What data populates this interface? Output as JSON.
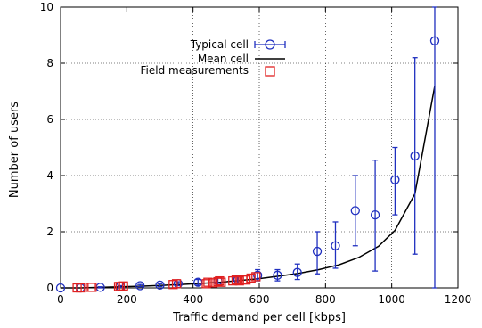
{
  "chart_data": {
    "type": "line",
    "xlabel": "Traffic demand per cell [kbps]",
    "ylabel": "Number of users",
    "xlim": [
      0,
      1200
    ],
    "ylim": [
      0,
      10
    ],
    "xticks": [
      0,
      200,
      400,
      600,
      800,
      1000,
      1200
    ],
    "yticks": [
      0,
      2,
      4,
      6,
      8,
      10
    ],
    "grid": true,
    "legend_position": "top-left",
    "colors": {
      "typical": "#1f2fbf",
      "mean": "#000000",
      "field": "#e02020"
    },
    "series": [
      {
        "name": "Typical cell",
        "style": "circles-with-errorbars",
        "points": [
          {
            "x": 0,
            "y": 0.0,
            "lo": 0.0,
            "hi": 0.0
          },
          {
            "x": 60,
            "y": 0.0,
            "lo": 0.0,
            "hi": 0.0
          },
          {
            "x": 120,
            "y": 0.02,
            "lo": 0.0,
            "hi": 0.04
          },
          {
            "x": 180,
            "y": 0.05,
            "lo": 0.02,
            "hi": 0.08
          },
          {
            "x": 240,
            "y": 0.08,
            "lo": 0.04,
            "hi": 0.12
          },
          {
            "x": 300,
            "y": 0.1,
            "lo": 0.05,
            "hi": 0.15
          },
          {
            "x": 355,
            "y": 0.15,
            "lo": 0.08,
            "hi": 0.22
          },
          {
            "x": 415,
            "y": 0.2,
            "lo": 0.1,
            "hi": 0.3
          },
          {
            "x": 475,
            "y": 0.25,
            "lo": 0.12,
            "hi": 0.38
          },
          {
            "x": 535,
            "y": 0.3,
            "lo": 0.15,
            "hi": 0.45
          },
          {
            "x": 595,
            "y": 0.45,
            "lo": 0.25,
            "hi": 0.65
          },
          {
            "x": 655,
            "y": 0.45,
            "lo": 0.25,
            "hi": 0.65
          },
          {
            "x": 715,
            "y": 0.55,
            "lo": 0.3,
            "hi": 0.85
          },
          {
            "x": 775,
            "y": 1.3,
            "lo": 0.5,
            "hi": 2.0
          },
          {
            "x": 830,
            "y": 1.5,
            "lo": 0.7,
            "hi": 2.35
          },
          {
            "x": 890,
            "y": 2.75,
            "lo": 1.5,
            "hi": 4.0
          },
          {
            "x": 950,
            "y": 2.6,
            "lo": 0.6,
            "hi": 4.55
          },
          {
            "x": 1010,
            "y": 3.85,
            "lo": 2.6,
            "hi": 5.0
          },
          {
            "x": 1070,
            "y": 4.7,
            "lo": 1.2,
            "hi": 8.2
          },
          {
            "x": 1130,
            "y": 8.8,
            "lo": 0.0,
            "hi": 10.0
          }
        ]
      },
      {
        "name": "Mean cell",
        "style": "line",
        "x": [
          0,
          60,
          120,
          180,
          240,
          300,
          360,
          420,
          480,
          540,
          600,
          660,
          720,
          780,
          840,
          900,
          960,
          1010,
          1070,
          1130
        ],
        "y": [
          0.0,
          0.0,
          0.02,
          0.04,
          0.06,
          0.09,
          0.12,
          0.16,
          0.2,
          0.26,
          0.33,
          0.42,
          0.52,
          0.65,
          0.82,
          1.08,
          1.48,
          2.05,
          3.35,
          7.2
        ]
      },
      {
        "name": "Field measurements",
        "style": "squares",
        "x": [
          50,
          60,
          90,
          95,
          175,
          180,
          190,
          340,
          350,
          440,
          445,
          460,
          475,
          480,
          485,
          520,
          530,
          540,
          550,
          560,
          575,
          590
        ],
        "y": [
          0.0,
          0.0,
          0.02,
          0.02,
          0.05,
          0.05,
          0.07,
          0.12,
          0.15,
          0.15,
          0.2,
          0.18,
          0.22,
          0.25,
          0.2,
          0.25,
          0.28,
          0.25,
          0.3,
          0.28,
          0.35,
          0.4
        ]
      }
    ]
  }
}
